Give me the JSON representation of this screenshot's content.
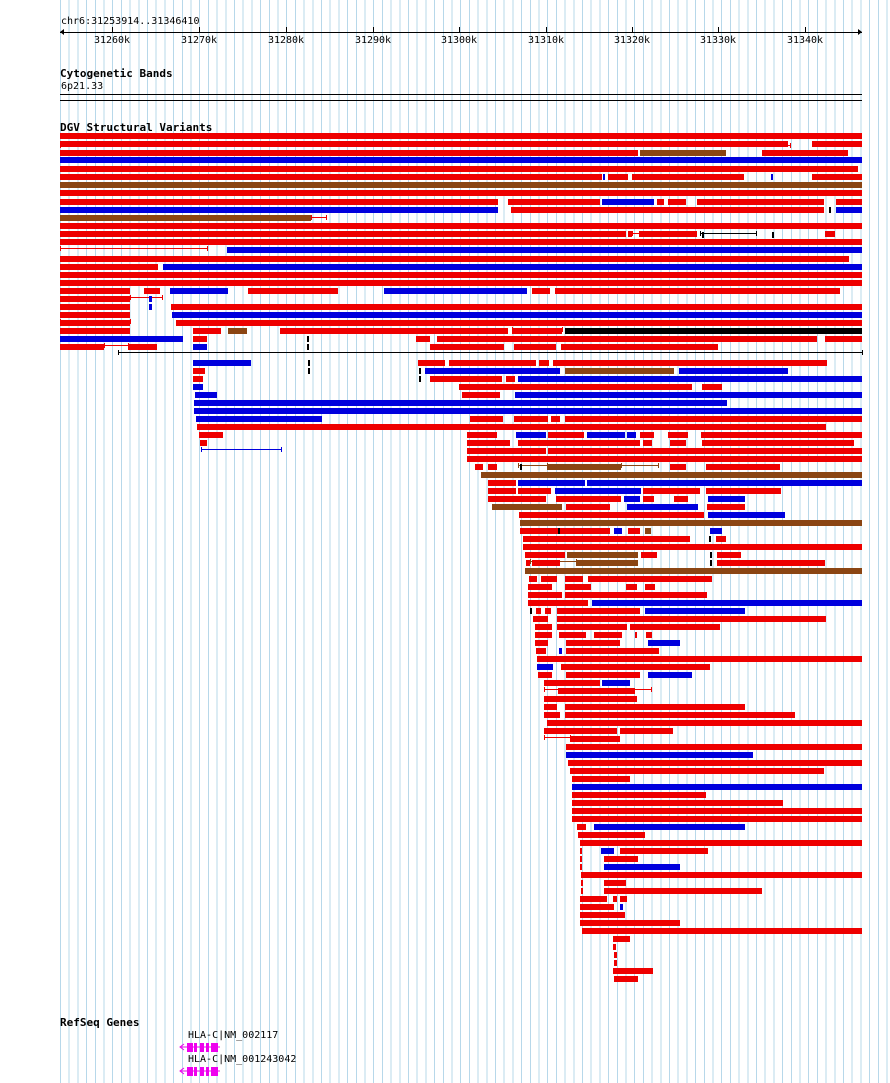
{
  "locus": "chr6:31253914..31346410",
  "ruler": {
    "ticks": [
      "31260k",
      "31270k",
      "31280k",
      "31290k",
      "31300k",
      "31310k",
      "31320k",
      "31330k",
      "31340k"
    ]
  },
  "cytoband": {
    "title": "Cytogenetic Bands",
    "band": "6p21.33"
  },
  "dgv": {
    "title": "DGV Structural Variants"
  },
  "refseq": {
    "title": "RefSeq Genes",
    "genes": [
      "HLA-C|NM_002117",
      "HLA-C|NM_001243042"
    ]
  },
  "colors": {
    "loss": "#ee0000",
    "gain": "#0000dd",
    "both": "#8b4513",
    "complex": "#000000",
    "gene": "#ee00ee",
    "grid": "#b7d8ea"
  }
}
